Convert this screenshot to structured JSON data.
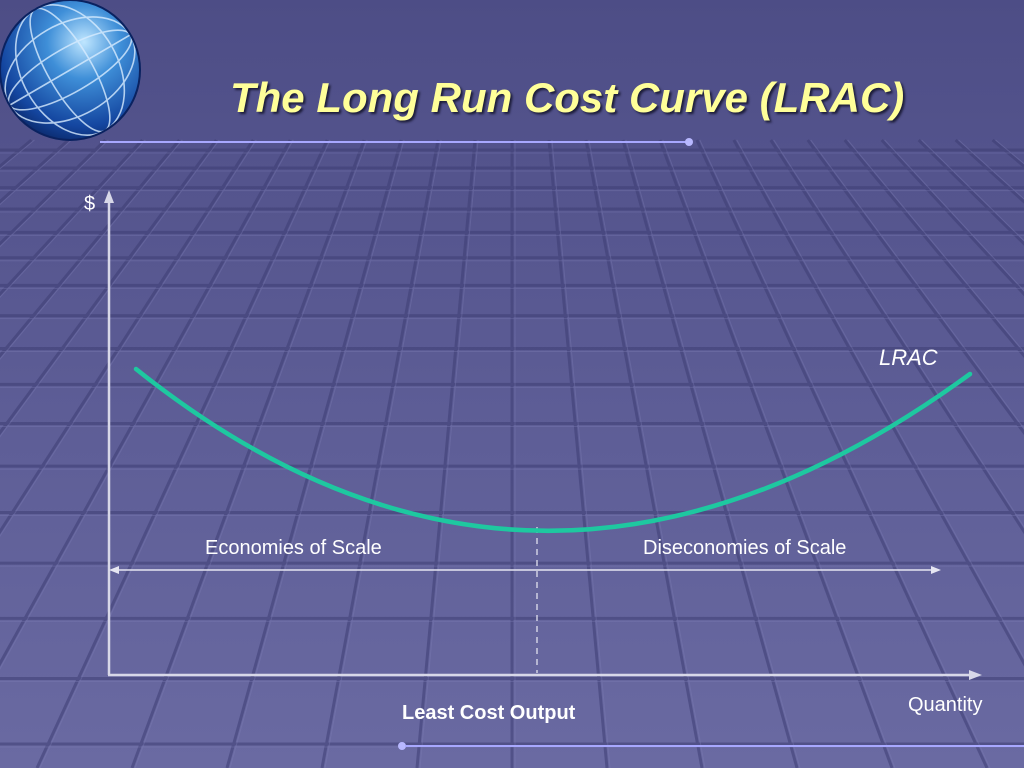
{
  "slide": {
    "title": "The Long Run Cost Curve (LRAC)"
  },
  "diagram": {
    "y_axis_label": "$",
    "x_axis_label": "Quantity",
    "curve_label": "LRAC",
    "left_region_label": "Economies of Scale",
    "right_region_label": "Diseconomies of Scale",
    "minimum_point_label": "Least Cost Output"
  },
  "colors": {
    "background": "#5a5a92",
    "title": "#ffff99",
    "curve": "#1ec8a0",
    "axes": "#d8d8e8",
    "accent_line": "#a8a8ff"
  }
}
